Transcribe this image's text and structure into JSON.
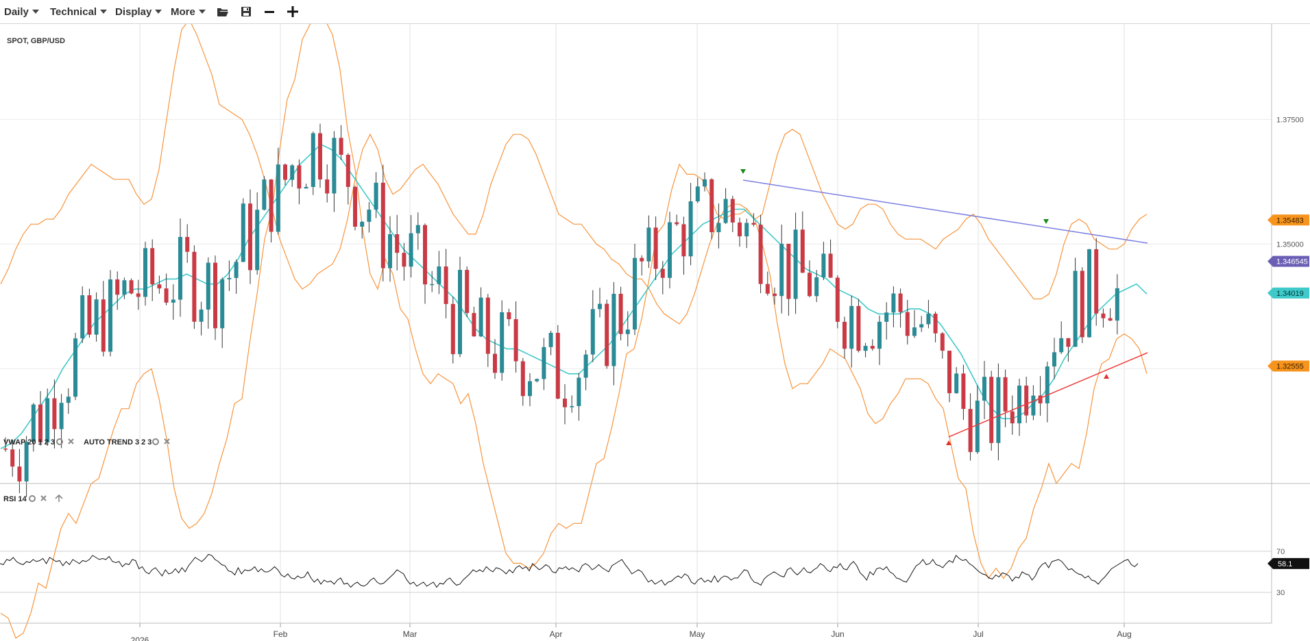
{
  "toolbar": {
    "menus": [
      "Daily",
      "Technical",
      "Display",
      "More"
    ],
    "icons": [
      "folder-open-icon",
      "save-icon",
      "zoom-out-icon",
      "zoom-in-icon"
    ]
  },
  "chart_data": {
    "type": "candlestick",
    "title": "SPOT, GBP/USD",
    "indicator_labels": {
      "vwap": "VWAP 20 1 2 3",
      "auto_trend": "AUTO TREND 3 2 3",
      "rsi": "RSI 14"
    },
    "x_tick_labels": [
      "2026",
      "Feb",
      "Mar",
      "Apr",
      "May",
      "Jun",
      "Jul",
      "Aug"
    ],
    "y_ticks": [
      "1.37500",
      "1.35000"
    ],
    "ylim": [
      1.302,
      1.394
    ],
    "price_tags": [
      {
        "label": "1.35483",
        "value": 1.35483,
        "color": "#f7941d",
        "text_color": "#3a2000"
      },
      {
        "label": "1.346545",
        "value": 1.346545,
        "color": "#6b5fb5",
        "text_color": "#ffffff"
      },
      {
        "label": "1.34019",
        "value": 1.34019,
        "color": "#3fc9c9",
        "text_color": "#003838"
      },
      {
        "label": "1.32555",
        "value": 1.32555,
        "color": "#f7941d",
        "text_color": "#3a2000"
      }
    ],
    "rsi": {
      "ylim": [
        0,
        100
      ],
      "levels": [
        "70",
        "30"
      ],
      "current": "58.1",
      "values": [
        58,
        57,
        62,
        61,
        64,
        60,
        58,
        57,
        60,
        59,
        62,
        60,
        61,
        63,
        58,
        64,
        62,
        60,
        61,
        56,
        60,
        57,
        62,
        60,
        58,
        61,
        60,
        62,
        66,
        64,
        62,
        63,
        62,
        65,
        60,
        59,
        60,
        55,
        58,
        57,
        62,
        61,
        53,
        55,
        50,
        48,
        52,
        54,
        50,
        46,
        52,
        48,
        49,
        53,
        49,
        54,
        50,
        56,
        60,
        64,
        62,
        60,
        63,
        67,
        66,
        62,
        60,
        57,
        56,
        51,
        50,
        47,
        54,
        48,
        52,
        51,
        52,
        55,
        50,
        53,
        50,
        50,
        52,
        55,
        52,
        47,
        45,
        48,
        44,
        43,
        46,
        44,
        45,
        50,
        44,
        40,
        43,
        38,
        42,
        40,
        41,
        38,
        42,
        44,
        38,
        39,
        35,
        38,
        40,
        37,
        36,
        38,
        42,
        44,
        40,
        38,
        39,
        42,
        45,
        48,
        52,
        50,
        48,
        42,
        38,
        40,
        36,
        38,
        40,
        36,
        38,
        40,
        35,
        39,
        38,
        42,
        44,
        40,
        37,
        38,
        42,
        45,
        48,
        52,
        50,
        52,
        50,
        55,
        52,
        50,
        54,
        53,
        51,
        48,
        52,
        49,
        54,
        56,
        53,
        55,
        51,
        58,
        55,
        52,
        54,
        57,
        55,
        50,
        49,
        54,
        53,
        55,
        52,
        54,
        52,
        50,
        56,
        58,
        56,
        52,
        54,
        57,
        54,
        52,
        50,
        56,
        58,
        60,
        62,
        57,
        53,
        48,
        50,
        52,
        50,
        45,
        40,
        42,
        38,
        40,
        42,
        37,
        40,
        41,
        44,
        46,
        44,
        48,
        46,
        40,
        38,
        42,
        44,
        40,
        42,
        40,
        46,
        40,
        44,
        46,
        45,
        42,
        44,
        44,
        48,
        52,
        51,
        44,
        40,
        39,
        37,
        43,
        46,
        48,
        50,
        48,
        46,
        45,
        52,
        54,
        50,
        47,
        50,
        54,
        50,
        49,
        52,
        54,
        58,
        56,
        52,
        50,
        55,
        54,
        58,
        53,
        52,
        57,
        60,
        56,
        49,
        46,
        42,
        50,
        47,
        53,
        54,
        52,
        55,
        50,
        48,
        44,
        43,
        41,
        40,
        45,
        51,
        56,
        58,
        62,
        57,
        58,
        62,
        57,
        56,
        54,
        58,
        61,
        59,
        66,
        63,
        61,
        62,
        58,
        56,
        53,
        50,
        48,
        47,
        44,
        43,
        47,
        45,
        49,
        48,
        46,
        41,
        45,
        44,
        50,
        48,
        47,
        42,
        46,
        53,
        57,
        59,
        54,
        60,
        61,
        62,
        60,
        56,
        52,
        53,
        50,
        48,
        47,
        44,
        46,
        42,
        41,
        38,
        42,
        45,
        49,
        53,
        55,
        57,
        59,
        61,
        62,
        57,
        55,
        58.1
      ]
    },
    "bollinger": {
      "upper": [
        1.342,
        1.345,
        1.349,
        1.352,
        1.354,
        1.354,
        1.355,
        1.355,
        1.357,
        1.36,
        1.362,
        1.364,
        1.366,
        1.365,
        1.364,
        1.363,
        1.363,
        1.363,
        1.36,
        1.358,
        1.359,
        1.365,
        1.375,
        1.385,
        1.393,
        1.395,
        1.392,
        1.388,
        1.384,
        1.378,
        1.377,
        1.376,
        1.375,
        1.372,
        1.368,
        1.363,
        1.357,
        1.351,
        1.347,
        1.343,
        1.341,
        1.342,
        1.344,
        1.345,
        1.346,
        1.349,
        1.355,
        1.363,
        1.369,
        1.372,
        1.369,
        1.363,
        1.36,
        1.361,
        1.363,
        1.365,
        1.366,
        1.364,
        1.362,
        1.359,
        1.356,
        1.354,
        1.352,
        1.352,
        1.356,
        1.362,
        1.366,
        1.37,
        1.372,
        1.372,
        1.371,
        1.368,
        1.364,
        1.36,
        1.356,
        1.355,
        1.354,
        1.354,
        1.352,
        1.35,
        1.349,
        1.347,
        1.346,
        1.344,
        1.343,
        1.343,
        1.341,
        1.338,
        1.336,
        1.335,
        1.334,
        1.336,
        1.34,
        1.345,
        1.35,
        1.354,
        1.357,
        1.358,
        1.358,
        1.357,
        1.355,
        1.356,
        1.362,
        1.368,
        1.372,
        1.373,
        1.372,
        1.368,
        1.364,
        1.36,
        1.357,
        1.354,
        1.353,
        1.354,
        1.357,
        1.358,
        1.358,
        1.357,
        1.354,
        1.352,
        1.351,
        1.351,
        1.351,
        1.35,
        1.349,
        1.351,
        1.352,
        1.353,
        1.355,
        1.356,
        1.354,
        1.351,
        1.349,
        1.347,
        1.345,
        1.343,
        1.341,
        1.339,
        1.339,
        1.34,
        1.344,
        1.35,
        1.354,
        1.355,
        1.354,
        1.351,
        1.35,
        1.349,
        1.349,
        1.35,
        1.353,
        1.355,
        1.356
      ],
      "middle": [
        1.309,
        1.31,
        1.312,
        1.315,
        1.318,
        1.321,
        1.325,
        1.328,
        1.331,
        1.334,
        1.336,
        1.338,
        1.34,
        1.341,
        1.341,
        1.342,
        1.343,
        1.343,
        1.344,
        1.343,
        1.342,
        1.342,
        1.344,
        1.347,
        1.351,
        1.354,
        1.357,
        1.36,
        1.363,
        1.366,
        1.368,
        1.37,
        1.369,
        1.367,
        1.364,
        1.361,
        1.358,
        1.355,
        1.352,
        1.349,
        1.347,
        1.345,
        1.343,
        1.341,
        1.339,
        1.336,
        1.333,
        1.331,
        1.33,
        1.329,
        1.329,
        1.328,
        1.327,
        1.326,
        1.325,
        1.324,
        1.324,
        1.326,
        1.328,
        1.33,
        1.333,
        1.336,
        1.339,
        1.342,
        1.345,
        1.348,
        1.35,
        1.352,
        1.354,
        1.355,
        1.356,
        1.357,
        1.357,
        1.355,
        1.353,
        1.351,
        1.349,
        1.347,
        1.345,
        1.344,
        1.343,
        1.341,
        1.34,
        1.339,
        1.337,
        1.336,
        1.336,
        1.336,
        1.337,
        1.337,
        1.336,
        1.334,
        1.331,
        1.328,
        1.324,
        1.32,
        1.317,
        1.315,
        1.315,
        1.316,
        1.318,
        1.32,
        1.323,
        1.327,
        1.33,
        1.333,
        1.336,
        1.338,
        1.34,
        1.341,
        1.342,
        1.34
      ]
    }
  }
}
